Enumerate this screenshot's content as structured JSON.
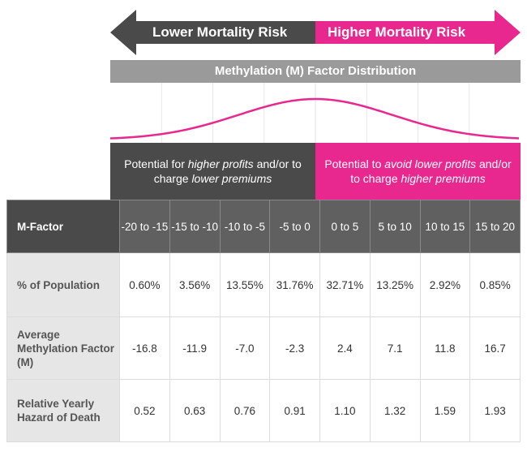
{
  "arrows": {
    "left_label": "Lower Mortality Risk",
    "right_label": "Higher Mortality Risk",
    "left_color": "#4a4a4a",
    "right_color": "#e8278f"
  },
  "distribution_title": "Methylation (M) Factor Distribution",
  "potential_left": {
    "part1": "Potential for ",
    "em1": "higher profits",
    "part2": " and/or to charge ",
    "em2": "lower premiums"
  },
  "potential_right": {
    "part1": "Potential to ",
    "em1": "avoid lower profits",
    "part2": " and/or to charge ",
    "em2": "higher premiums"
  },
  "table": {
    "header_label": "M-Factor",
    "columns": [
      "-20 to -15",
      "-15 to -10",
      "-10 to -5",
      "-5 to 0",
      "0 to 5",
      "5 to 10",
      "10 to 15",
      "15 to 20"
    ],
    "rows": [
      {
        "label": "% of Population",
        "values": [
          "0.60%",
          "3.56%",
          "13.55%",
          "31.76%",
          "32.71%",
          "13.25%",
          "2.92%",
          "0.85%"
        ]
      },
      {
        "label": "Average Methylation Factor (M)",
        "values": [
          "-16.8",
          "-11.9",
          "-7.0",
          "-2.3",
          "2.4",
          "7.1",
          "11.8",
          "16.7"
        ]
      },
      {
        "label": "Relative Yearly Hazard of Death",
        "values": [
          "0.52",
          "0.63",
          "0.76",
          "0.91",
          "1.10",
          "1.32",
          "1.59",
          "1.93"
        ]
      }
    ]
  },
  "chart_data": {
    "type": "table",
    "title": "Methylation (M) Factor Distribution",
    "categories": [
      "-20 to -15",
      "-15 to -10",
      "-10 to -5",
      "-5 to 0",
      "0 to 5",
      "5 to 10",
      "10 to 15",
      "15 to 20"
    ],
    "series": [
      {
        "name": "% of Population",
        "values": [
          0.6,
          3.56,
          13.55,
          31.76,
          32.71,
          13.25,
          2.92,
          0.85
        ]
      },
      {
        "name": "Average Methylation Factor (M)",
        "values": [
          -16.8,
          -11.9,
          -7.0,
          -2.3,
          2.4,
          7.1,
          11.8,
          16.7
        ]
      },
      {
        "name": "Relative Yearly Hazard of Death",
        "values": [
          0.52,
          0.63,
          0.76,
          0.91,
          1.1,
          1.32,
          1.59,
          1.93
        ]
      }
    ],
    "curve_color": "#e8278f"
  }
}
